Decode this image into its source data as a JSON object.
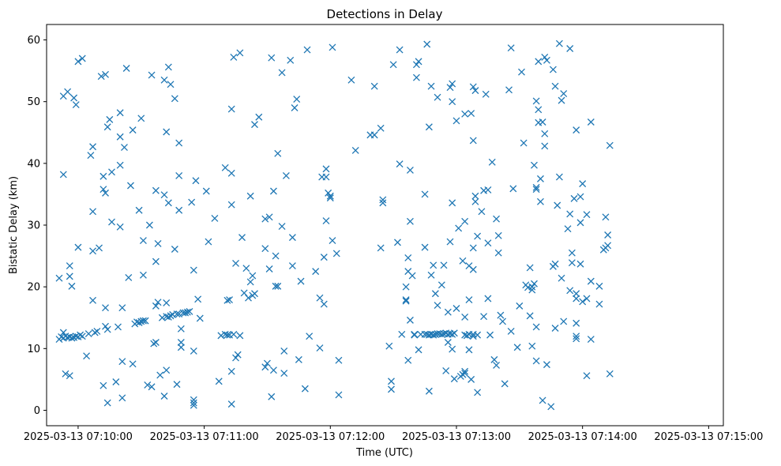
{
  "chart_data": {
    "type": "scatter",
    "title": "Detections in Delay",
    "xlabel": "Time (UTC)",
    "ylabel": "Bistatic Delay (km)",
    "x_unit": "seconds after 07:10:00",
    "xlim": [
      -15,
      307
    ],
    "ylim": [
      -2.5,
      62.5
    ],
    "marker": "x",
    "color": "#1f77b4",
    "x_ticks": [
      0,
      60,
      120,
      180,
      240,
      300
    ],
    "x_tick_labels": [
      "2025-03-13 07:10:00",
      "2025-03-13 07:11:00",
      "2025-03-13 07:12:00",
      "2025-03-13 07:13:00",
      "2025-03-13 07:14:00",
      "2025-03-13 07:15:00"
    ],
    "y_ticks": [
      0,
      10,
      20,
      30,
      40,
      50,
      60
    ],
    "y_tick_labels": [
      "0",
      "10",
      "20",
      "30",
      "40",
      "50",
      "60"
    ],
    "points": [
      [
        -9,
        11.5
      ],
      [
        -8,
        11.9
      ],
      [
        -7,
        11.7
      ],
      [
        -6,
        12
      ],
      [
        -5,
        11.8
      ],
      [
        -4,
        11.9
      ],
      [
        -3,
        11.7
      ],
      [
        -2,
        11.8
      ],
      [
        -1,
        12
      ],
      [
        0,
        11.9
      ],
      [
        1,
        12.2
      ],
      [
        2,
        12
      ],
      [
        -9,
        21.4
      ],
      [
        -7,
        38.2
      ],
      [
        -7,
        50.9
      ],
      [
        -5,
        51.6
      ],
      [
        -2,
        50.6
      ],
      [
        -1,
        49.5
      ],
      [
        0,
        56.5
      ],
      [
        2,
        57
      ],
      [
        -4,
        23.4
      ],
      [
        -4,
        21.7
      ],
      [
        -3,
        20.1
      ],
      [
        0,
        26.4
      ],
      [
        -6,
        5.9
      ],
      [
        -4,
        5.6
      ],
      [
        -7,
        12.6
      ],
      [
        4,
        8.8
      ],
      [
        5,
        12.4
      ],
      [
        6,
        41.3
      ],
      [
        7,
        25.8
      ],
      [
        7,
        32.2
      ],
      [
        7,
        42.7
      ],
      [
        7,
        17.8
      ],
      [
        8,
        12.6
      ],
      [
        9,
        12.8
      ],
      [
        10,
        26.3
      ],
      [
        11,
        54.1
      ],
      [
        12,
        4
      ],
      [
        12,
        37.9
      ],
      [
        12,
        35.8
      ],
      [
        13,
        35.2
      ],
      [
        13,
        54.4
      ],
      [
        13,
        13.6
      ],
      [
        13,
        16.6
      ],
      [
        14,
        13.1
      ],
      [
        14,
        1.2
      ],
      [
        14,
        45.9
      ],
      [
        15,
        47.1
      ],
      [
        16,
        38.6
      ],
      [
        16,
        30.5
      ],
      [
        18,
        4.6
      ],
      [
        19,
        13.5
      ],
      [
        20,
        29.7
      ],
      [
        20,
        39.7
      ],
      [
        20,
        44.3
      ],
      [
        20,
        48.2
      ],
      [
        21,
        7.9
      ],
      [
        21,
        2
      ],
      [
        21,
        16.6
      ],
      [
        22,
        42.6
      ],
      [
        23,
        55.4
      ],
      [
        24,
        21.5
      ],
      [
        25,
        36.4
      ],
      [
        26,
        45.4
      ],
      [
        26,
        7.5
      ],
      [
        27,
        14
      ],
      [
        28,
        14.3
      ],
      [
        29,
        14.2
      ],
      [
        29,
        32.4
      ],
      [
        30,
        47.3
      ],
      [
        30,
        14.4
      ],
      [
        31,
        14.5
      ],
      [
        31,
        21.9
      ],
      [
        31,
        27.5
      ],
      [
        32,
        14.5
      ],
      [
        33,
        4.1
      ],
      [
        34,
        30
      ],
      [
        35,
        54.3
      ],
      [
        35,
        3.8
      ],
      [
        36,
        10.8
      ],
      [
        37,
        24.1
      ],
      [
        37,
        11
      ],
      [
        37,
        35.6
      ],
      [
        37,
        16.9
      ],
      [
        38,
        17.5
      ],
      [
        38,
        27
      ],
      [
        39,
        5.7
      ],
      [
        40,
        15
      ],
      [
        41,
        53.5
      ],
      [
        41,
        2.3
      ],
      [
        41,
        34.9
      ],
      [
        42,
        15.2
      ],
      [
        42,
        17.4
      ],
      [
        42,
        45.1
      ],
      [
        42,
        6.5
      ],
      [
        43,
        15.1
      ],
      [
        43,
        55.6
      ],
      [
        43,
        33.6
      ],
      [
        44,
        15.3
      ],
      [
        44,
        52.8
      ],
      [
        45,
        15.5
      ],
      [
        46,
        50.5
      ],
      [
        46,
        26.1
      ],
      [
        47,
        15.6
      ],
      [
        47,
        4.2
      ],
      [
        48,
        15.6
      ],
      [
        48,
        32.4
      ],
      [
        48,
        38
      ],
      [
        48,
        43.3
      ],
      [
        49,
        13.2
      ],
      [
        49,
        11
      ],
      [
        49,
        10.2
      ],
      [
        50,
        15.8
      ],
      [
        51,
        15.8
      ],
      [
        52,
        15.9
      ],
      [
        53,
        16
      ],
      [
        54,
        33.7
      ],
      [
        55,
        22.7
      ],
      [
        55,
        1.7
      ],
      [
        55,
        1.2
      ],
      [
        55,
        0.8
      ],
      [
        55,
        9.6
      ],
      [
        56,
        37.2
      ],
      [
        57,
        18
      ],
      [
        58,
        14.9
      ],
      [
        61,
        35.5
      ],
      [
        62,
        27.3
      ],
      [
        65,
        31.1
      ],
      [
        67,
        4.7
      ],
      [
        68,
        12.1
      ],
      [
        70,
        39.3
      ],
      [
        70,
        12.3
      ],
      [
        71,
        12.2
      ],
      [
        71,
        17.8
      ],
      [
        72,
        17.9
      ],
      [
        72,
        12.2
      ],
      [
        73,
        38.4
      ],
      [
        73,
        48.8
      ],
      [
        73,
        33.3
      ],
      [
        73,
        6.3
      ],
      [
        73,
        1
      ],
      [
        74,
        57.2
      ],
      [
        74,
        12.3
      ],
      [
        75,
        23.8
      ],
      [
        75,
        8.5
      ],
      [
        76,
        9
      ],
      [
        77,
        57.9
      ],
      [
        77,
        12.1
      ],
      [
        78,
        28
      ],
      [
        79,
        19
      ],
      [
        80,
        23
      ],
      [
        81,
        18.2
      ],
      [
        82,
        20.8
      ],
      [
        82,
        34.7
      ],
      [
        83,
        21.8
      ],
      [
        83,
        18.6
      ],
      [
        84,
        18.9
      ],
      [
        84,
        46.3
      ],
      [
        86,
        47.5
      ],
      [
        89,
        26.2
      ],
      [
        89,
        31
      ],
      [
        89,
        7
      ],
      [
        90,
        7.6
      ],
      [
        91,
        31.3
      ],
      [
        91,
        22.9
      ],
      [
        92,
        2.2
      ],
      [
        92,
        57.1
      ],
      [
        93,
        35.5
      ],
      [
        93,
        6.5
      ],
      [
        94,
        20.1
      ],
      [
        94,
        25
      ],
      [
        95,
        41.6
      ],
      [
        95,
        20.1
      ],
      [
        97,
        54.7
      ],
      [
        97,
        29.8
      ],
      [
        98,
        6
      ],
      [
        98,
        9.6
      ],
      [
        99,
        38
      ],
      [
        101,
        56.7
      ],
      [
        102,
        28
      ],
      [
        102,
        23.4
      ],
      [
        103,
        49
      ],
      [
        104,
        50.4
      ],
      [
        105,
        8.2
      ],
      [
        106,
        20.9
      ],
      [
        108,
        3.5
      ],
      [
        109,
        58.4
      ],
      [
        110,
        12
      ],
      [
        113,
        22.5
      ],
      [
        115,
        10.1
      ],
      [
        115,
        18.2
      ],
      [
        116,
        37.8
      ],
      [
        117,
        24.8
      ],
      [
        117,
        17.2
      ],
      [
        118,
        30.7
      ],
      [
        118,
        37.8
      ],
      [
        118,
        39.1
      ],
      [
        119,
        35.2
      ],
      [
        120,
        34.4
      ],
      [
        120,
        34.7
      ],
      [
        121,
        27.5
      ],
      [
        121,
        58.8
      ],
      [
        123,
        25.4
      ],
      [
        124,
        8.1
      ],
      [
        124,
        2.5
      ],
      [
        130,
        53.5
      ],
      [
        132,
        42.1
      ],
      [
        139,
        44.6
      ],
      [
        141,
        52.5
      ],
      [
        141,
        44.6
      ],
      [
        144,
        45.7
      ],
      [
        144,
        26.3
      ],
      [
        145,
        34.1
      ],
      [
        145,
        33.6
      ],
      [
        148,
        10.4
      ],
      [
        149,
        3.4
      ],
      [
        149,
        4.7
      ],
      [
        150,
        56
      ],
      [
        152,
        27.2
      ],
      [
        153,
        58.4
      ],
      [
        153,
        39.9
      ],
      [
        154,
        12.3
      ],
      [
        156,
        17.7
      ],
      [
        156,
        20
      ],
      [
        156,
        17.9
      ],
      [
        157,
        24.7
      ],
      [
        157,
        22.5
      ],
      [
        157,
        8.1
      ],
      [
        158,
        30.6
      ],
      [
        158,
        38.9
      ],
      [
        158,
        14.6
      ],
      [
        159,
        21.8
      ],
      [
        160,
        12.2
      ],
      [
        160,
        12.3
      ],
      [
        161,
        53.9
      ],
      [
        161,
        56
      ],
      [
        162,
        9.8
      ],
      [
        162,
        56.5
      ],
      [
        163,
        12.3
      ],
      [
        165,
        12.3
      ],
      [
        165,
        35
      ],
      [
        165,
        26.4
      ],
      [
        166,
        59.3
      ],
      [
        166,
        12.3
      ],
      [
        167,
        12.2
      ],
      [
        167,
        45.9
      ],
      [
        167,
        3.1
      ],
      [
        168,
        52.5
      ],
      [
        168,
        12.3
      ],
      [
        168,
        21.9
      ],
      [
        169,
        23.5
      ],
      [
        169,
        12.2
      ],
      [
        170,
        18.9
      ],
      [
        170,
        12.3
      ],
      [
        171,
        50.7
      ],
      [
        171,
        12.4
      ],
      [
        171,
        17
      ],
      [
        172,
        12.4
      ],
      [
        173,
        12.3
      ],
      [
        173,
        20.3
      ],
      [
        174,
        12.4
      ],
      [
        174,
        23.5
      ],
      [
        175,
        12.5
      ],
      [
        175,
        6.4
      ],
      [
        176,
        12.3
      ],
      [
        176,
        15.9
      ],
      [
        176,
        11
      ],
      [
        177,
        52.3
      ],
      [
        177,
        12.4
      ],
      [
        177,
        27.3
      ],
      [
        178,
        9.9
      ],
      [
        178,
        12.3
      ],
      [
        178,
        33.6
      ],
      [
        178,
        50
      ],
      [
        178,
        52.9
      ],
      [
        179,
        12.5
      ],
      [
        179,
        5.1
      ],
      [
        180,
        46.9
      ],
      [
        180,
        16.5
      ],
      [
        181,
        29.5
      ],
      [
        182,
        5.5
      ],
      [
        183,
        24.2
      ],
      [
        183,
        5.8
      ],
      [
        184,
        12.2
      ],
      [
        184,
        30.6
      ],
      [
        184,
        48
      ],
      [
        184,
        15.1
      ],
      [
        184,
        6.3
      ],
      [
        184,
        6
      ],
      [
        185,
        12.1
      ],
      [
        186,
        23.4
      ],
      [
        186,
        9.8
      ],
      [
        186,
        12.3
      ],
      [
        186,
        17.9
      ],
      [
        187,
        48.1
      ],
      [
        187,
        5
      ],
      [
        188,
        22.8
      ],
      [
        188,
        12.3
      ],
      [
        188,
        26.3
      ],
      [
        188,
        43.7
      ],
      [
        188,
        52.4
      ],
      [
        188,
        12
      ],
      [
        189,
        34.7
      ],
      [
        189,
        33.8
      ],
      [
        189,
        51.8
      ],
      [
        190,
        28.2
      ],
      [
        190,
        2.9
      ],
      [
        190,
        12.2
      ],
      [
        192,
        32.2
      ],
      [
        193,
        15.2
      ],
      [
        193,
        35.6
      ],
      [
        194,
        51.2
      ],
      [
        195,
        35.7
      ],
      [
        195,
        27.1
      ],
      [
        195,
        18.1
      ],
      [
        196,
        12.2
      ],
      [
        197,
        40.2
      ],
      [
        198,
        8.2
      ],
      [
        199,
        31
      ],
      [
        199,
        7.3
      ],
      [
        200,
        25.5
      ],
      [
        200,
        28.3
      ],
      [
        201,
        15.4
      ],
      [
        202,
        14.4
      ],
      [
        203,
        4.3
      ],
      [
        205,
        51.9
      ],
      [
        206,
        12.8
      ],
      [
        206,
        58.7
      ],
      [
        207,
        35.9
      ],
      [
        209,
        10.2
      ],
      [
        210,
        16.9
      ],
      [
        211,
        54.8
      ],
      [
        212,
        43.3
      ],
      [
        213,
        20.3
      ],
      [
        214,
        19.9
      ],
      [
        215,
        15.3
      ],
      [
        215,
        23.1
      ],
      [
        216,
        10.4
      ],
      [
        216,
        20
      ],
      [
        216,
        19.5
      ],
      [
        217,
        20.5
      ],
      [
        217,
        39.7
      ],
      [
        218,
        13.5
      ],
      [
        218,
        8
      ],
      [
        218,
        35.8
      ],
      [
        218,
        36.1
      ],
      [
        218,
        50.1
      ],
      [
        219,
        56.5
      ],
      [
        219,
        46.6
      ],
      [
        219,
        48.7
      ],
      [
        220,
        37.5
      ],
      [
        220,
        33.8
      ],
      [
        221,
        46.7
      ],
      [
        221,
        1.6
      ],
      [
        222,
        57.2
      ],
      [
        222,
        42.8
      ],
      [
        222,
        44.8
      ],
      [
        223,
        56.7
      ],
      [
        223,
        7.4
      ],
      [
        225,
        0.6
      ],
      [
        226,
        55.2
      ],
      [
        226,
        23.3
      ],
      [
        227,
        52.5
      ],
      [
        227,
        13.3
      ],
      [
        227,
        23.7
      ],
      [
        228,
        33.2
      ],
      [
        229,
        59.4
      ],
      [
        229,
        37.8
      ],
      [
        230,
        50.2
      ],
      [
        230,
        21.4
      ],
      [
        231,
        51.3
      ],
      [
        231,
        14.4
      ],
      [
        233,
        29.4
      ],
      [
        234,
        58.6
      ],
      [
        234,
        31.8
      ],
      [
        234,
        19.4
      ],
      [
        235,
        23.9
      ],
      [
        235,
        25.5
      ],
      [
        236,
        34.3
      ],
      [
        237,
        45.4
      ],
      [
        237,
        18.9
      ],
      [
        237,
        18.1
      ],
      [
        237,
        14.1
      ],
      [
        237,
        12
      ],
      [
        237,
        11.6
      ],
      [
        239,
        30.4
      ],
      [
        239,
        34.6
      ],
      [
        239,
        23.7
      ],
      [
        240,
        17.6
      ],
      [
        240,
        36.7
      ],
      [
        242,
        31.7
      ],
      [
        242,
        18.1
      ],
      [
        242,
        5.6
      ],
      [
        244,
        46.7
      ],
      [
        244,
        20.9
      ],
      [
        244,
        11.5
      ],
      [
        248,
        20.1
      ],
      [
        248,
        17.2
      ],
      [
        250,
        26
      ],
      [
        251,
        26.3
      ],
      [
        251,
        31.3
      ],
      [
        252,
        28.4
      ],
      [
        252,
        26.7
      ],
      [
        253,
        42.9
      ],
      [
        253,
        5.9
      ]
    ]
  }
}
